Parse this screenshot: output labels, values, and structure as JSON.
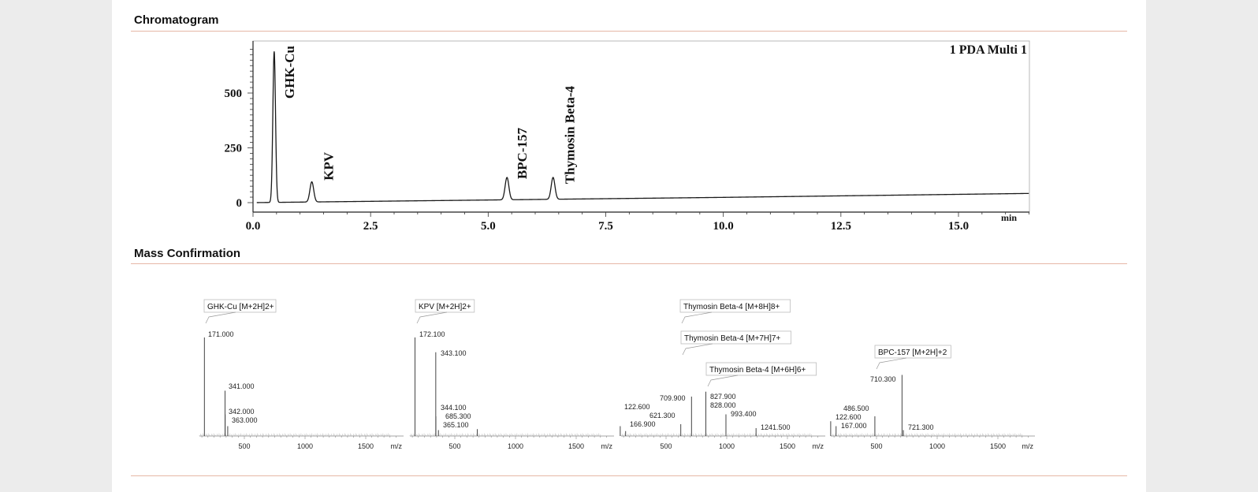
{
  "sections": {
    "chromatogram_title": "Chromatogram",
    "mass_title": "Mass Confirmation"
  },
  "chart_data": [
    {
      "type": "line",
      "title": "1 PDA Multi 1",
      "xlabel": "min",
      "ylabel": "",
      "xlim": [
        0,
        16.5
      ],
      "ylim": [
        0,
        720
      ],
      "x_ticks": [
        "0.0",
        "2.5",
        "5.0",
        "7.5",
        "10.0",
        "12.5",
        "15.0"
      ],
      "y_ticks": [
        "0",
        "250",
        "500"
      ],
      "baseline": [
        [
          0,
          0
        ],
        [
          5,
          12
        ],
        [
          10,
          24
        ],
        [
          16.5,
          42
        ]
      ],
      "peaks": [
        {
          "label": "GHK-Cu",
          "rt": 0.45,
          "height": 690
        },
        {
          "label": "KPV",
          "rt": 1.25,
          "height": 95
        },
        {
          "label": "BPC-157",
          "rt": 5.4,
          "height": 115
        },
        {
          "label": "Thymosin Beta-4",
          "rt": 6.38,
          "height": 115
        }
      ]
    },
    {
      "type": "bar",
      "title": "GHK-Cu [M+2H]2+",
      "xlabel": "m/z",
      "xlim": [
        120,
        1780
      ],
      "x_ticks": [
        "500",
        "1000",
        "1500"
      ],
      "peaks": [
        {
          "mz": 171.0,
          "label": "171.000",
          "rel": 1.0
        },
        {
          "mz": 341.0,
          "label": "341.000",
          "rel": 0.46
        },
        {
          "mz": 342.0,
          "label": "342.000",
          "rel": 0.22
        },
        {
          "mz": 363.0,
          "label": "363.000",
          "rel": 0.1
        }
      ]
    },
    {
      "type": "bar",
      "title": "KPV [M+2H]2+",
      "xlabel": "m/z",
      "xlim": [
        120,
        1780
      ],
      "x_ticks": [
        "500",
        "1000",
        "1500"
      ],
      "peaks": [
        {
          "mz": 172.1,
          "label": "172.100",
          "rel": 1.0
        },
        {
          "mz": 343.1,
          "label": "343.100",
          "rel": 0.85
        },
        {
          "mz": 344.1,
          "label": "344.100",
          "rel": 0.2
        },
        {
          "mz": 685.3,
          "label": "685.300",
          "rel": 0.07
        },
        {
          "mz": 365.1,
          "label": "365.100",
          "rel": 0.06
        }
      ]
    },
    {
      "type": "bar",
      "title": "",
      "annotations": [
        "Thymosin Beta-4 [M+8H]8+",
        "Thymosin Beta-4 [M+7H]7+",
        "Thymosin Beta-4 [M+6H]6+"
      ],
      "xlabel": "m/z",
      "xlim": [
        120,
        1780
      ],
      "x_ticks": [
        "500",
        "1000",
        "1500"
      ],
      "peaks": [
        {
          "mz": 122.6,
          "label": "122.600",
          "rel": 0.1
        },
        {
          "mz": 166.9,
          "label": "166.900",
          "rel": 0.05
        },
        {
          "mz": 621.3,
          "label": "621.300",
          "rel": 0.12
        },
        {
          "mz": 709.9,
          "label": "709.900",
          "rel": 0.4
        },
        {
          "mz": 827.9,
          "label": "827.900",
          "rel": 0.45
        },
        {
          "mz": 828.0,
          "label": "828.000",
          "rel": 0.3
        },
        {
          "mz": 993.4,
          "label": "993.400",
          "rel": 0.22
        },
        {
          "mz": 1241.5,
          "label": "1241.500",
          "rel": 0.08
        }
      ]
    },
    {
      "type": "bar",
      "title": "BPC-157 [M+2H]+2",
      "xlabel": "m/z",
      "xlim": [
        120,
        1780
      ],
      "x_ticks": [
        "500",
        "1000",
        "1500"
      ],
      "peaks": [
        {
          "mz": 486.5,
          "label": "486.500",
          "rel": 0.2
        },
        {
          "mz": 122.6,
          "label": "122.600",
          "rel": 0.15
        },
        {
          "mz": 167.0,
          "label": "167.000",
          "rel": 0.1
        },
        {
          "mz": 710.3,
          "label": "710.300",
          "rel": 0.62
        },
        {
          "mz": 721.3,
          "label": "721.300",
          "rel": 0.06
        }
      ]
    }
  ]
}
